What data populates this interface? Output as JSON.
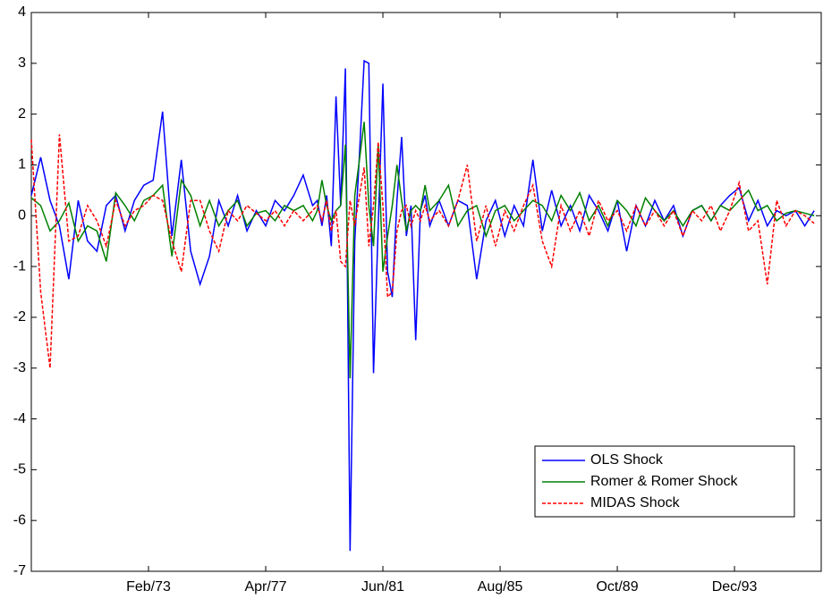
{
  "chart_data": {
    "type": "line",
    "x": [
      0,
      4,
      8,
      12,
      16,
      20,
      24,
      28,
      32,
      36,
      40,
      44,
      48,
      52,
      56,
      60,
      64,
      68,
      72,
      76,
      80,
      84,
      88,
      92,
      96,
      100,
      104,
      108,
      112,
      116,
      120,
      122,
      124,
      126,
      128,
      130,
      132,
      134,
      136,
      138,
      140,
      142,
      144,
      146,
      148,
      150,
      152,
      154,
      156,
      158,
      160,
      162,
      164,
      166,
      168,
      170,
      174,
      178,
      182,
      186,
      190,
      194,
      198,
      202,
      206,
      210,
      214,
      218,
      222,
      226,
      230,
      234,
      238,
      242,
      246,
      250,
      254,
      258,
      262,
      266,
      270,
      274,
      278,
      282,
      286,
      290,
      294,
      298,
      302,
      306,
      310,
      314,
      318,
      322,
      326,
      330,
      334
    ],
    "xlim": [
      0,
      337
    ],
    "xticks": [
      {
        "value": 50,
        "label": "Feb/73"
      },
      {
        "value": 100,
        "label": "Apr/77"
      },
      {
        "value": 150,
        "label": "Jun/81"
      },
      {
        "value": 200,
        "label": "Aug/85"
      },
      {
        "value": 250,
        "label": "Oct/89"
      },
      {
        "value": 300,
        "label": "Dec/93"
      }
    ],
    "ylim": [
      -7,
      4
    ],
    "yticks": [
      -7,
      -6,
      -5,
      -4,
      -3,
      -2,
      -1,
      0,
      1,
      2,
      3,
      4
    ],
    "legend": "lower right",
    "series": [
      {
        "name": "OLS Shock",
        "color": "#0000ff",
        "line_style": "solid",
        "values": [
          0.4,
          1.15,
          0.3,
          -0.2,
          -1.25,
          0.3,
          -0.5,
          -0.7,
          0.2,
          0.4,
          -0.3,
          0.3,
          0.6,
          0.7,
          2.05,
          -0.4,
          1.1,
          -0.7,
          -1.35,
          -0.8,
          0.3,
          -0.2,
          0.4,
          -0.3,
          0.1,
          -0.2,
          0.3,
          0.1,
          0.4,
          0.8,
          0.2,
          0.3,
          -0.2,
          0.4,
          -0.6,
          2.35,
          0.2,
          2.9,
          -6.6,
          -0.5,
          1.2,
          3.05,
          3.0,
          -3.1,
          -0.2,
          2.6,
          -1.1,
          -1.6,
          0.3,
          1.55,
          -0.4,
          0.2,
          -2.45,
          0.1,
          0.4,
          -0.2,
          0.3,
          -0.2,
          0.3,
          0.2,
          -1.25,
          -0.1,
          0.3,
          -0.4,
          0.2,
          -0.2,
          1.1,
          -0.3,
          0.5,
          -0.2,
          0.2,
          -0.3,
          0.4,
          0.1,
          -0.3,
          0.3,
          -0.7,
          0.2,
          -0.2,
          0.3,
          -0.1,
          0.2,
          -0.4,
          0.1,
          0.2,
          -0.1,
          0.2,
          0.4,
          0.55,
          -0.1,
          0.3,
          -0.2,
          0.1,
          0.0,
          0.1,
          -0.2,
          0.1
        ]
      },
      {
        "name": "Romer & Romer Shock",
        "color": "#008000",
        "line_style": "solid",
        "values": [
          0.35,
          0.2,
          -0.3,
          -0.1,
          0.25,
          -0.5,
          -0.2,
          -0.3,
          -0.9,
          0.45,
          0.2,
          -0.1,
          0.3,
          0.4,
          0.6,
          -0.8,
          0.7,
          0.4,
          -0.2,
          0.3,
          -0.2,
          0.1,
          0.3,
          -0.2,
          0.05,
          0.1,
          -0.1,
          0.2,
          0.1,
          0.2,
          -0.1,
          0.1,
          0.7,
          0.2,
          -0.1,
          0.1,
          0.2,
          1.4,
          -3.2,
          0.4,
          1.1,
          1.85,
          0.2,
          -0.6,
          1.4,
          -1.1,
          -0.4,
          0.2,
          1.0,
          0.3,
          -0.3,
          0.1,
          0.2,
          0.1,
          0.6,
          0.1,
          0.3,
          0.6,
          -0.2,
          0.1,
          0.2,
          -0.4,
          0.1,
          0.2,
          -0.1,
          0.1,
          0.3,
          0.2,
          -0.1,
          0.4,
          0.1,
          0.45,
          -0.1,
          0.2,
          -0.2,
          0.3,
          0.1,
          -0.2,
          0.35,
          0.1,
          -0.1,
          0.1,
          -0.2,
          0.1,
          0.2,
          -0.1,
          0.2,
          0.1,
          0.3,
          0.5,
          0.1,
          0.2,
          -0.1,
          0.05,
          0.1,
          0.05,
          0.0
        ]
      },
      {
        "name": "MIDAS Shock",
        "color": "#ff0000",
        "line_style": "dashed",
        "values": [
          1.5,
          -1.5,
          -3.0,
          1.6,
          -0.5,
          -0.4,
          0.2,
          -0.1,
          -0.6,
          0.3,
          -0.2,
          0.1,
          0.2,
          0.4,
          0.3,
          -0.5,
          -1.1,
          0.3,
          0.3,
          -0.3,
          -0.7,
          0.1,
          -0.1,
          0.2,
          0.05,
          -0.1,
          0.1,
          -0.2,
          0.1,
          -0.1,
          0.1,
          0.2,
          -0.1,
          0.3,
          -0.3,
          0.1,
          -0.9,
          -1.0,
          0.3,
          -0.2,
          0.4,
          0.95,
          -0.6,
          0.2,
          1.45,
          0.2,
          -1.6,
          -1.5,
          -0.3,
          0.1,
          0.2,
          -0.2,
          0.1,
          -0.1,
          0.2,
          -0.1,
          0.1,
          -0.2,
          0.3,
          1.0,
          -0.5,
          0.2,
          -0.6,
          0.1,
          -0.3,
          0.2,
          0.6,
          -0.5,
          -1.0,
          0.2,
          -0.3,
          0.1,
          -0.4,
          0.3,
          -0.1,
          0.1,
          -0.3,
          0.2,
          -0.2,
          0.1,
          -0.2,
          0.1,
          -0.4,
          0.1,
          -0.1,
          0.2,
          -0.3,
          0.1,
          0.65,
          -0.3,
          -0.1,
          -1.35,
          0.3,
          -0.2,
          0.1,
          0.0,
          -0.15
        ]
      }
    ]
  }
}
